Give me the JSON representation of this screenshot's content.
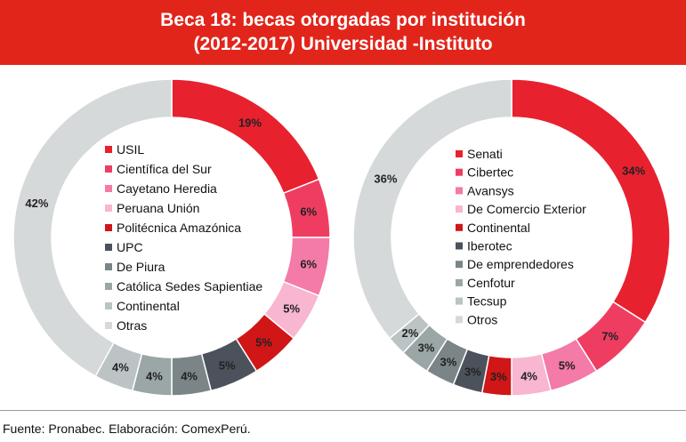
{
  "title": {
    "line1": "Beca 18: becas otorgadas por institución",
    "line2": "(2012-2017) Universidad -Instituto"
  },
  "source": "Fuente: Pronabec. Elaboración: ComexPerú.",
  "chart_data": [
    {
      "type": "pie",
      "subtype": "donut",
      "title": "Universidad",
      "categories": [
        "USIL",
        "Científica del Sur",
        "Cayetano Heredia",
        "Peruana Unión",
        "Politécnica Amazónica",
        "UPC",
        "De Piura",
        "Católica Sedes Sapientiae",
        "Continental",
        "Otras"
      ],
      "values": [
        19,
        6,
        6,
        5,
        5,
        5,
        4,
        4,
        4,
        42
      ],
      "labels": [
        "19%",
        "6%",
        "6%",
        "5%",
        "5%",
        "5%",
        "4%",
        "4%",
        "4%",
        "42%"
      ],
      "colors": [
        "#e8212e",
        "#ef3d62",
        "#f47aa7",
        "#f8b6d0",
        "#d01616",
        "#4b525b",
        "#7b8588",
        "#9ba6a7",
        "#bbc3c4",
        "#d5d9d9"
      ],
      "legend": "center"
    },
    {
      "type": "pie",
      "subtype": "donut",
      "title": "Instituto",
      "categories": [
        "Senati",
        "Cibertec",
        "Avansys",
        "De Comercio Exterior",
        "Continental",
        "Iberotec",
        "De emprendedores",
        "Cenfotur",
        "Tecsup",
        "Otros"
      ],
      "values": [
        34,
        7,
        5,
        4,
        3,
        3,
        3,
        3,
        2,
        36
      ],
      "labels": [
        "34%",
        "7%",
        "5%",
        "4%",
        "3%",
        "3%",
        "3%",
        "3%",
        "2%",
        "36%"
      ],
      "colors": [
        "#e8212e",
        "#ef3d62",
        "#f47aa7",
        "#f8b6d0",
        "#d01616",
        "#4b525b",
        "#7b8588",
        "#9ba6a7",
        "#bbc3c4",
        "#d5d9d9"
      ],
      "legend": "center"
    }
  ]
}
